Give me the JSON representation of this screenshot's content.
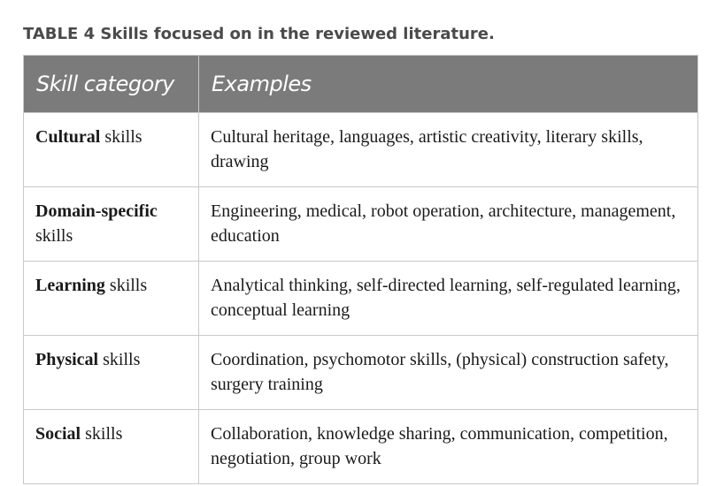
{
  "caption": "TABLE 4 Skills focused on in the reviewed literature.",
  "table": {
    "headers": [
      "Skill category",
      "Examples"
    ],
    "rows": [
      {
        "category_bold": "Cultural",
        "category_rest": " skills",
        "examples": "Cultural heritage, languages, artistic creativity, literary skills, drawing"
      },
      {
        "category_bold": "Domain-specific",
        "category_rest": " skills",
        "examples": "Engineering, medical, robot operation, architecture, management, education"
      },
      {
        "category_bold": "Learning",
        "category_rest": " skills",
        "examples": "Analytical thinking, self-directed learning, self-regulated learning, conceptual learning"
      },
      {
        "category_bold": "Physical",
        "category_rest": " skills",
        "examples": "Coordination, psychomotor skills, (physical) construction safety, surgery training"
      },
      {
        "category_bold": "Social",
        "category_rest": " skills",
        "examples": "Collaboration, knowledge sharing, communication, competition, negotiation, group work"
      }
    ]
  }
}
